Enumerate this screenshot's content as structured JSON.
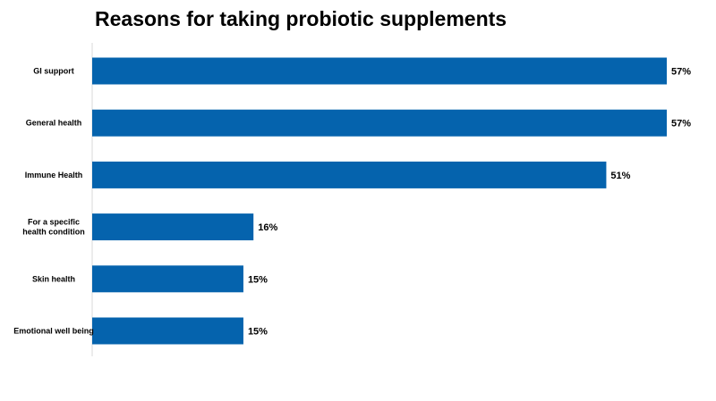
{
  "chart_data": {
    "type": "bar",
    "orientation": "horizontal",
    "title": "Reasons for taking probiotic supplements",
    "categories": [
      "GI support",
      "General health",
      "Immune Health",
      "For a specific health condition",
      "Skin health",
      "Emotional well being"
    ],
    "values": [
      57,
      57,
      51,
      16,
      15,
      15
    ],
    "value_labels": [
      "57%",
      "57%",
      "51%",
      "16%",
      "15%",
      "15%"
    ],
    "xlim": [
      0,
      57
    ],
    "grid": false,
    "legend": "none",
    "bar_color": "#0563ad"
  }
}
